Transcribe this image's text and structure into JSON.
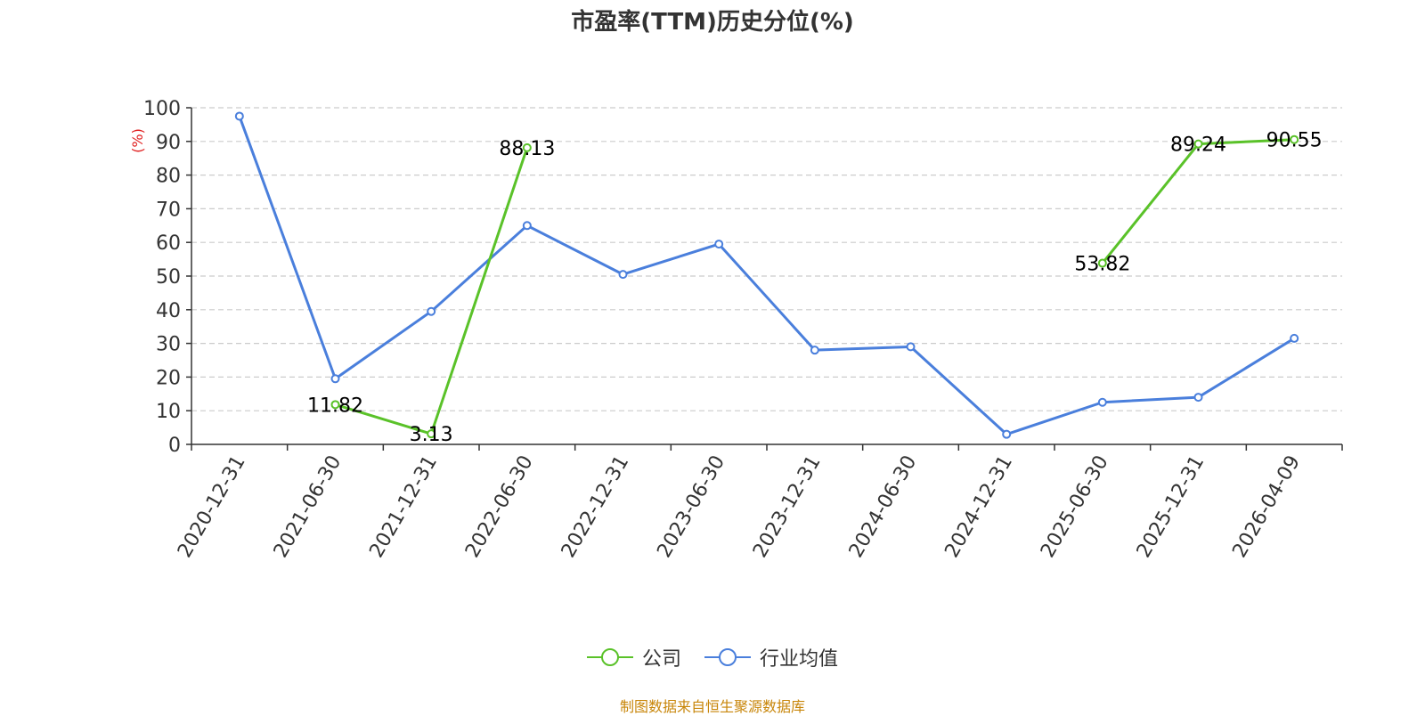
{
  "title": "市盈率(TTM)历史分位(%)",
  "unit_label": "(%)",
  "source_note": "制图数据来自恒生聚源数据库",
  "colors": {
    "company": "#5ac229",
    "industry": "#4a7fdc",
    "unit_label": "#e02020",
    "axis": "#333333",
    "grid": "#cccccc",
    "source": "#c8860a"
  },
  "chart_data": {
    "type": "line",
    "title": "市盈率(TTM)历史分位(%)",
    "xlabel": "",
    "ylabel": "(%)",
    "ylim": [
      0,
      100
    ],
    "yticks": [
      0,
      10,
      20,
      30,
      40,
      50,
      60,
      70,
      80,
      90,
      100
    ],
    "categories": [
      "2020-12-31",
      "2021-06-30",
      "2021-12-31",
      "2022-06-30",
      "2022-12-31",
      "2023-06-30",
      "2023-12-31",
      "2024-06-30",
      "2024-12-31",
      "2025-06-30",
      "2025-12-31",
      "2026-04-09"
    ],
    "grid": true,
    "legend_position": "bottom",
    "series": [
      {
        "name": "公司",
        "color": "#5ac229",
        "values": [
          null,
          11.82,
          3.13,
          88.13,
          null,
          null,
          null,
          null,
          null,
          53.82,
          89.24,
          90.55
        ],
        "data_labels": [
          null,
          "11.82",
          "3.13",
          "88.13",
          null,
          null,
          null,
          null,
          null,
          "53.82",
          "89.24",
          "90.55"
        ]
      },
      {
        "name": "行业均值",
        "color": "#4a7fdc",
        "values": [
          97.5,
          19.5,
          39.5,
          65,
          50.5,
          59.5,
          28,
          29,
          3,
          12.5,
          14,
          31.5
        ]
      }
    ]
  }
}
